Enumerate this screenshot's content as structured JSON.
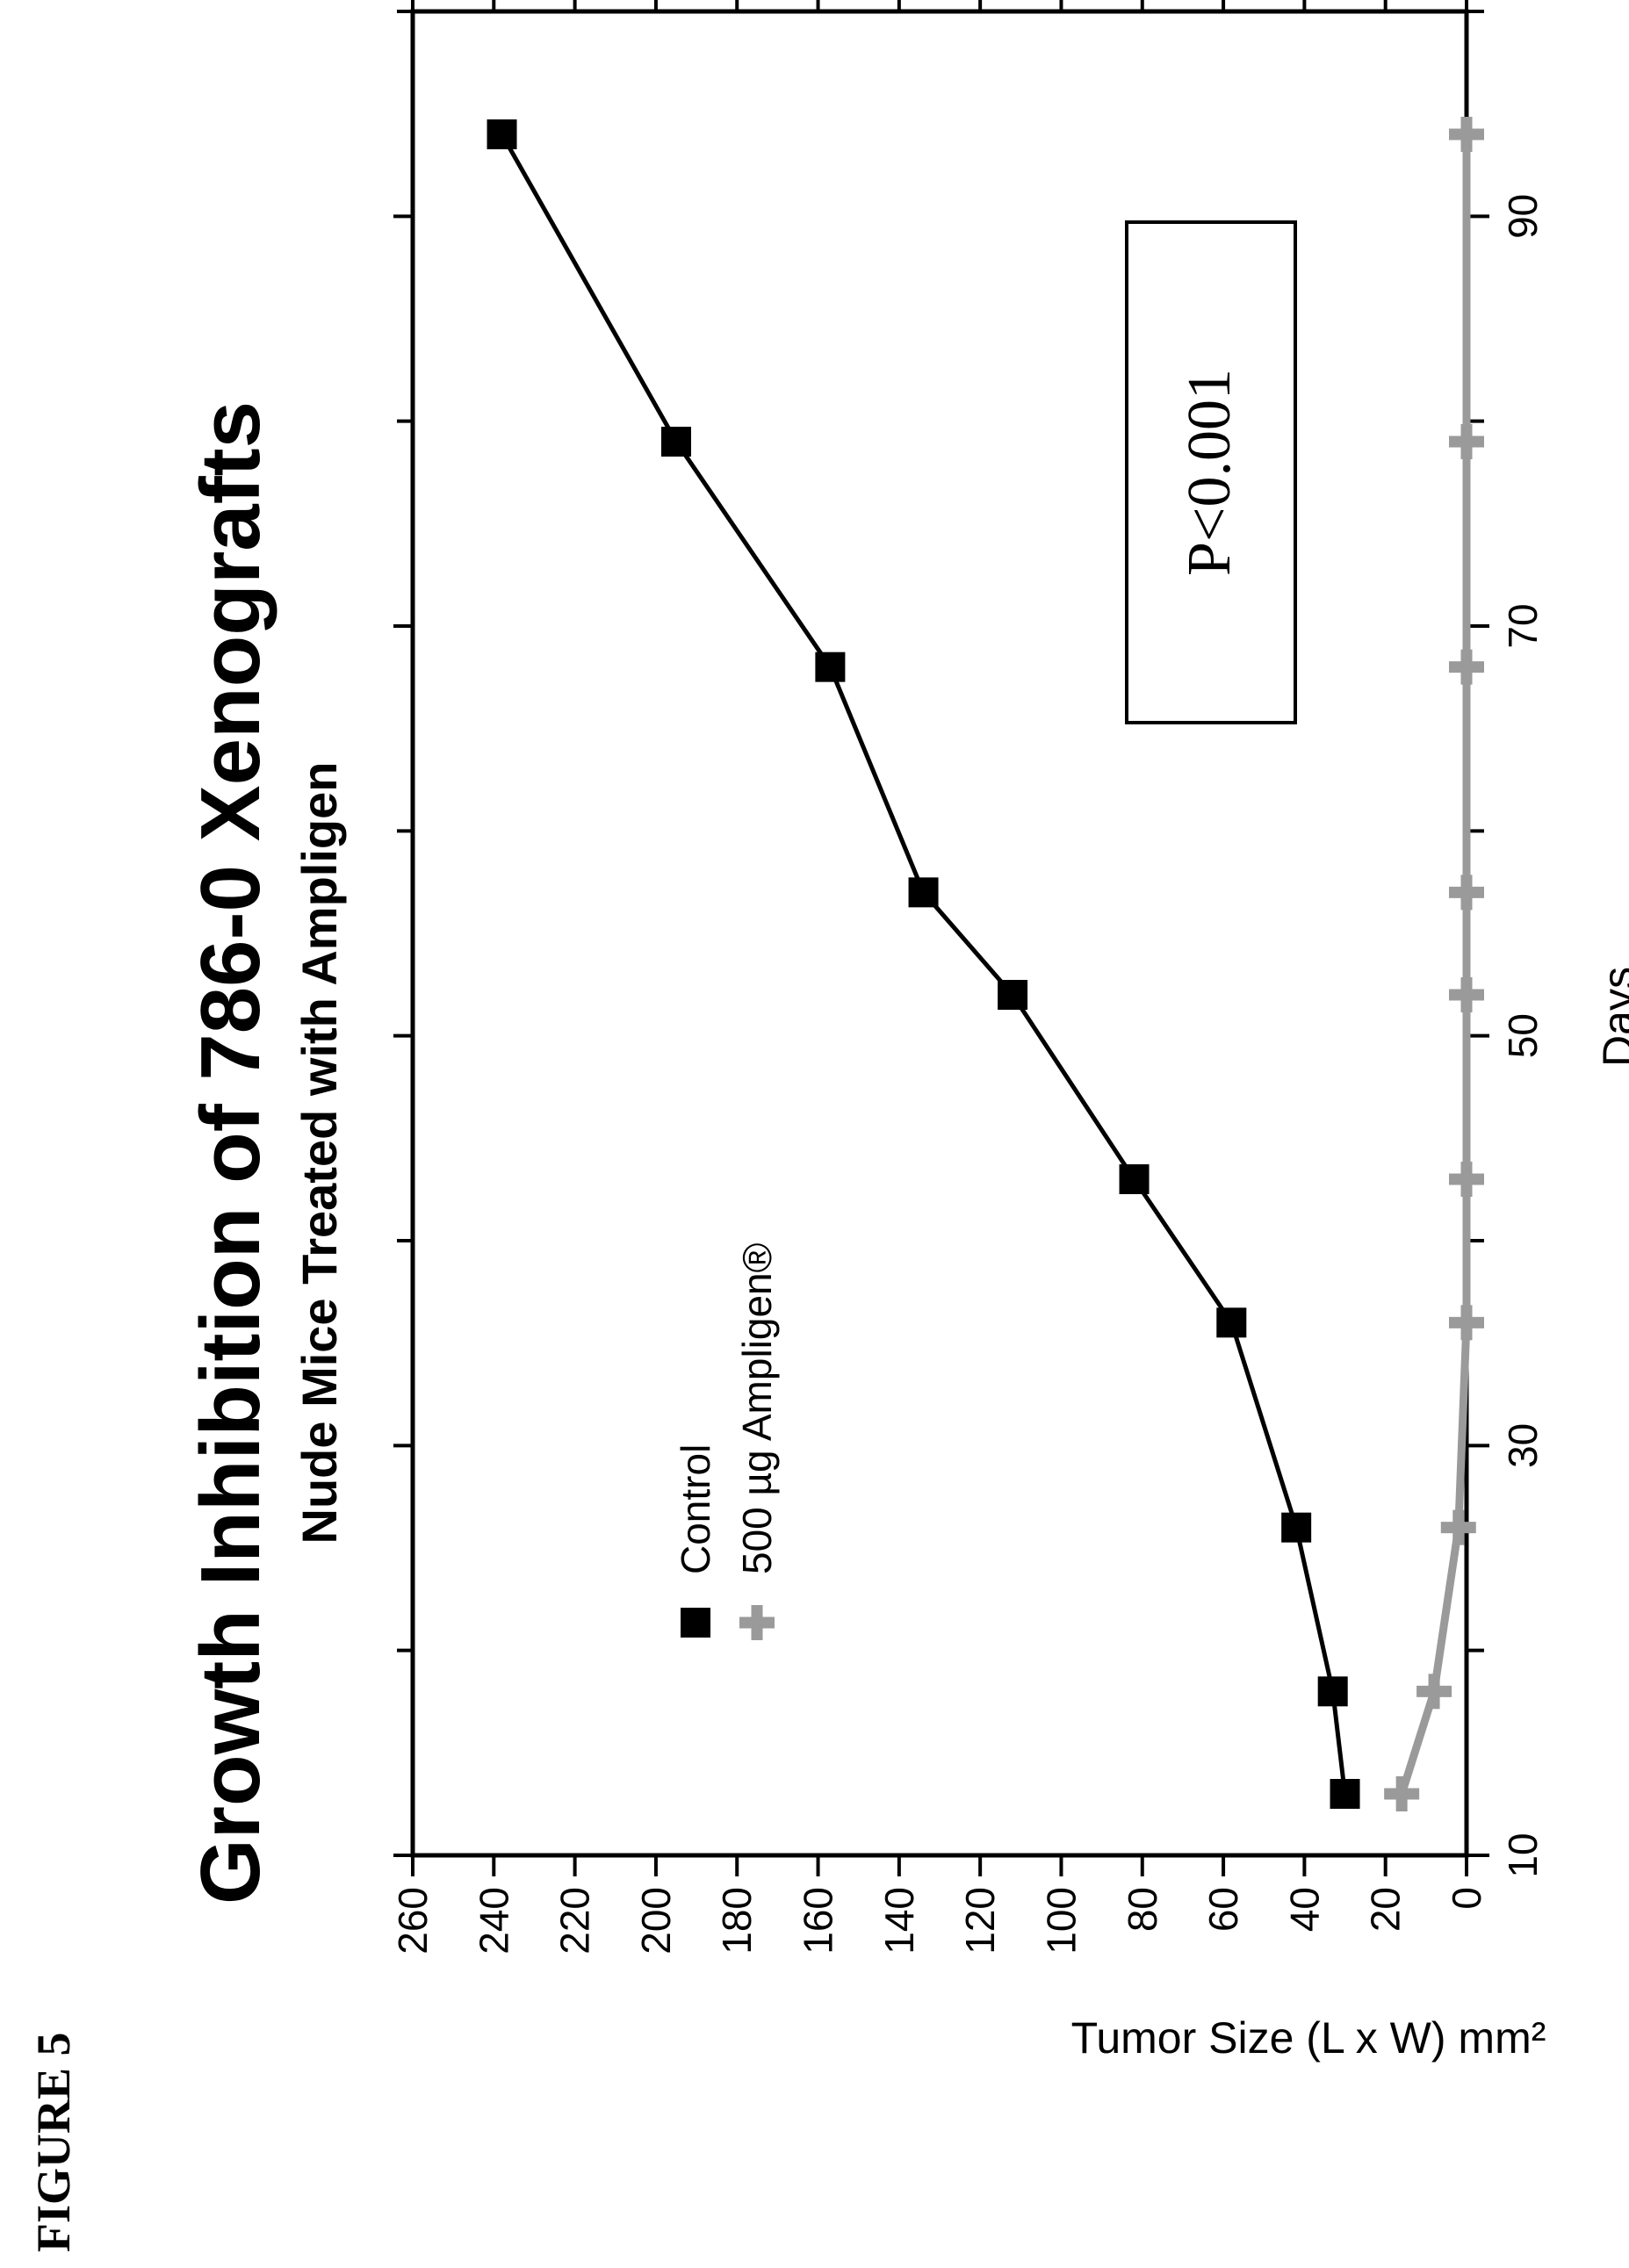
{
  "figure_label": "FIGURE 5",
  "chart_data": {
    "type": "line",
    "title": "Growth Inhibition of 786-0 Xenografts",
    "subtitle": "Nude Mice Treated with Ampligen",
    "xlabel": "Days",
    "ylabel": "Tumor Size (L x W) mm²",
    "xlim": [
      10,
      100
    ],
    "ylim": [
      0,
      260
    ],
    "x_ticks": [
      10,
      30,
      50,
      70,
      90
    ],
    "x_minor_ticks": [
      20,
      40,
      60,
      80,
      100
    ],
    "y_ticks": [
      0,
      20,
      40,
      60,
      80,
      100,
      120,
      140,
      160,
      180,
      200,
      220,
      240,
      260
    ],
    "legend": {
      "position": "upper-left"
    },
    "series": [
      {
        "name": "Control",
        "marker": "square",
        "color": "#000000",
        "x": [
          13,
          18,
          26,
          36,
          43,
          52,
          57,
          68,
          79,
          94
        ],
        "y": [
          30,
          33,
          42,
          58,
          82,
          112,
          134,
          157,
          195,
          238
        ]
      },
      {
        "name": "500 µg Ampligen®",
        "marker": "plus",
        "color": "#9a9a9a",
        "x": [
          13,
          18,
          26,
          36,
          43,
          52,
          57,
          68,
          79,
          94
        ],
        "y": [
          16,
          8,
          2,
          0,
          0,
          0,
          0,
          0,
          0,
          0
        ]
      }
    ],
    "annotation": "P<0.001"
  }
}
